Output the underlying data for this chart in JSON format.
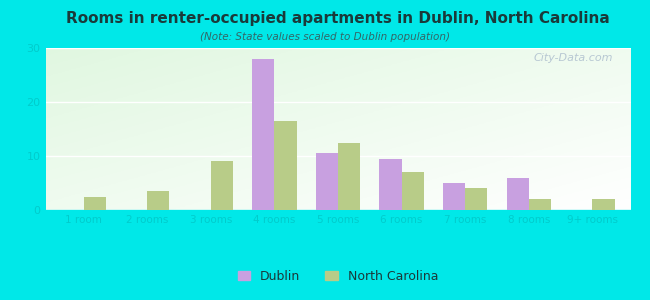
{
  "title": "Rooms in renter-occupied apartments in Dublin, North Carolina",
  "subtitle": "(Note: State values scaled to Dublin population)",
  "categories": [
    "1 room",
    "2 rooms",
    "3 rooms",
    "4 rooms",
    "5 rooms",
    "6 rooms",
    "7 rooms",
    "8 rooms",
    "9+ rooms"
  ],
  "dublin_values": [
    0,
    0,
    0,
    28,
    10.5,
    9.5,
    5,
    6,
    0
  ],
  "nc_values": [
    2.5,
    3.5,
    9,
    16.5,
    12.5,
    7,
    4,
    2,
    2
  ],
  "dublin_color": "#c8a0e0",
  "nc_color": "#b8cc88",
  "bg_color": "#00e8e8",
  "ylim": [
    0,
    30
  ],
  "yticks": [
    0,
    10,
    20,
    30
  ],
  "bar_width": 0.35,
  "legend_labels": [
    "Dublin",
    "North Carolina"
  ],
  "watermark": "City-Data.com",
  "title_color": "#1a3a3a",
  "subtitle_color": "#336666",
  "tick_color": "#00cccc"
}
